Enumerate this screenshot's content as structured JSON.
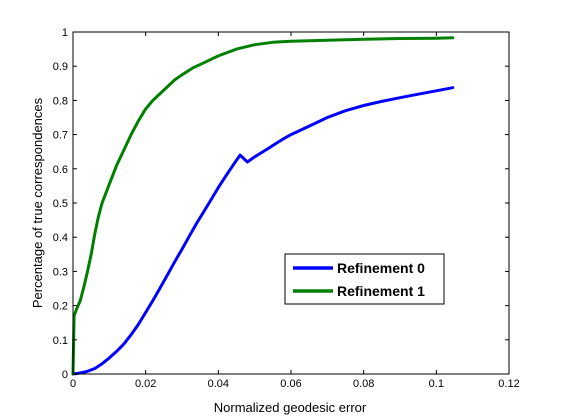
{
  "chart_data": {
    "type": "line",
    "xlabel": "Normalized geodesic error",
    "ylabel": "Percentage of true correspondences",
    "xlim": [
      0,
      0.12
    ],
    "ylim": [
      0,
      1
    ],
    "x_ticks": [
      0,
      0.02,
      0.04,
      0.06,
      0.08,
      0.1,
      0.12
    ],
    "x_tick_labels": [
      "0",
      "0.02",
      "0.04",
      "0.06",
      "0.08",
      "0.1",
      "0.12"
    ],
    "y_ticks": [
      0,
      0.1,
      0.2,
      0.3,
      0.4,
      0.5,
      0.6,
      0.7,
      0.8,
      0.9,
      1
    ],
    "y_tick_labels": [
      "0",
      "0.1",
      "0.2",
      "0.3",
      "0.4",
      "0.5",
      "0.6",
      "0.7",
      "0.8",
      "0.9",
      "1"
    ],
    "grid": false,
    "legend_position": "center-right",
    "series": [
      {
        "name": "Refinement 0",
        "color": "#0000ff",
        "x": [
          0,
          0.002,
          0.004,
          0.006,
          0.008,
          0.01,
          0.012,
          0.014,
          0.016,
          0.018,
          0.02,
          0.022,
          0.024,
          0.026,
          0.028,
          0.03,
          0.032,
          0.034,
          0.036,
          0.038,
          0.04,
          0.042,
          0.044,
          0.046,
          0.048,
          0.05,
          0.052,
          0.054,
          0.056,
          0.058,
          0.06,
          0.065,
          0.07,
          0.075,
          0.08,
          0.085,
          0.09,
          0.095,
          0.1,
          0.1045
        ],
        "y": [
          0,
          0.003,
          0.008,
          0.016,
          0.03,
          0.047,
          0.066,
          0.088,
          0.115,
          0.145,
          0.18,
          0.215,
          0.252,
          0.29,
          0.328,
          0.365,
          0.403,
          0.44,
          0.475,
          0.51,
          0.545,
          0.578,
          0.61,
          0.64,
          0.62,
          0.635,
          0.648,
          0.661,
          0.675,
          0.688,
          0.7,
          0.725,
          0.75,
          0.77,
          0.785,
          0.797,
          0.808,
          0.818,
          0.828,
          0.837
        ]
      },
      {
        "name": "Refinement 1",
        "color": "#008000",
        "x": [
          0,
          0.0003,
          0.001,
          0.002,
          0.003,
          0.004,
          0.005,
          0.006,
          0.007,
          0.008,
          0.01,
          0.012,
          0.014,
          0.016,
          0.018,
          0.02,
          0.022,
          0.025,
          0.028,
          0.03,
          0.033,
          0.036,
          0.04,
          0.045,
          0.05,
          0.055,
          0.06,
          0.07,
          0.08,
          0.09,
          0.1,
          0.1045
        ],
        "y": [
          0,
          0.17,
          0.19,
          0.215,
          0.255,
          0.3,
          0.35,
          0.41,
          0.46,
          0.5,
          0.555,
          0.61,
          0.655,
          0.7,
          0.74,
          0.775,
          0.8,
          0.83,
          0.86,
          0.875,
          0.895,
          0.91,
          0.93,
          0.95,
          0.963,
          0.97,
          0.973,
          0.976,
          0.979,
          0.981,
          0.982,
          0.983
        ]
      }
    ]
  }
}
